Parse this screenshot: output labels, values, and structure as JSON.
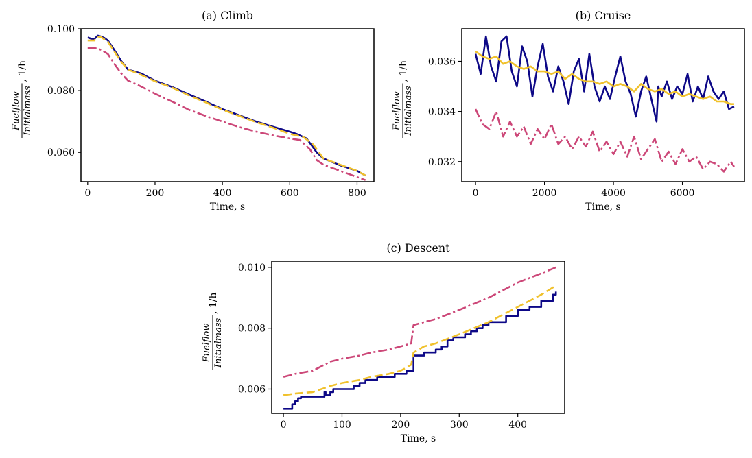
{
  "chart_data": [
    {
      "id": "climb",
      "type": "line",
      "title": "(a) Climb",
      "xlabel": "Time, s",
      "ylabel": {
        "numerator": "Fuelflow",
        "denominator": "Initialmass",
        "unit": ", 1/h"
      },
      "xlim": [
        -20,
        850
      ],
      "ylim": [
        0.0505,
        0.1
      ],
      "xticks": [
        0,
        200,
        400,
        600,
        800
      ],
      "yticks": [
        0.06,
        0.08,
        0.1
      ],
      "ytick_labels": [
        "0.060",
        "0.080",
        "0.100"
      ],
      "grid": false,
      "series": [
        {
          "color": "#0d0887",
          "style": "solid",
          "x": [
            0,
            10,
            20,
            30,
            40,
            50,
            60,
            80,
            100,
            120,
            140,
            160,
            180,
            200,
            250,
            300,
            350,
            400,
            450,
            500,
            550,
            600,
            620,
            650,
            680,
            700,
            750,
            800,
            825
          ],
          "y": [
            0.0972,
            0.0968,
            0.0967,
            0.0978,
            0.0975,
            0.097,
            0.0962,
            0.093,
            0.0895,
            0.0868,
            0.0862,
            0.0855,
            0.0843,
            0.0832,
            0.0812,
            0.0788,
            0.0765,
            0.074,
            0.072,
            0.07,
            0.0683,
            0.0667,
            0.066,
            0.0645,
            0.06,
            0.058,
            0.0558,
            0.054,
            0.0525
          ]
        },
        {
          "color": "#cc4778",
          "style": "dashdot",
          "x": [
            0,
            20,
            40,
            60,
            80,
            100,
            120,
            150,
            200,
            250,
            300,
            350,
            400,
            450,
            500,
            550,
            600,
            630,
            660,
            680,
            700,
            750,
            800,
            825
          ],
          "y": [
            0.0938,
            0.0938,
            0.0932,
            0.0918,
            0.0885,
            0.0855,
            0.0832,
            0.0818,
            0.079,
            0.0765,
            0.0738,
            0.0718,
            0.07,
            0.0682,
            0.0667,
            0.0655,
            0.0645,
            0.064,
            0.061,
            0.0575,
            0.056,
            0.054,
            0.052,
            0.051
          ]
        },
        {
          "color": "#f0c12c",
          "style": "dashed",
          "x": [
            0,
            20,
            30,
            40,
            60,
            80,
            100,
            120,
            150,
            200,
            250,
            300,
            350,
            400,
            450,
            500,
            550,
            600,
            640,
            670,
            700,
            750,
            800,
            825
          ],
          "y": [
            0.0962,
            0.0962,
            0.0975,
            0.0973,
            0.0958,
            0.0925,
            0.0892,
            0.0868,
            0.0855,
            0.083,
            0.081,
            0.0785,
            0.0762,
            0.0738,
            0.0718,
            0.0698,
            0.068,
            0.066,
            0.065,
            0.0625,
            0.058,
            0.056,
            0.054,
            0.0525
          ]
        }
      ]
    },
    {
      "id": "cruise",
      "type": "line",
      "title": "(b) Cruise",
      "xlabel": "Time, s",
      "ylabel": {
        "numerator": "Fuelflow",
        "denominator": "Initialmass",
        "unit": ", 1/h"
      },
      "xlim": [
        -400,
        7800
      ],
      "ylim": [
        0.0312,
        0.0373
      ],
      "xticks": [
        0,
        2000,
        4000,
        6000
      ],
      "yticks": [
        0.032,
        0.034,
        0.036
      ],
      "ytick_labels": [
        "0.032",
        "0.034",
        "0.036"
      ],
      "grid": false,
      "series": [
        {
          "color": "#0d0887",
          "style": "solid",
          "x": [
            0,
            150,
            300,
            450,
            600,
            750,
            900,
            1050,
            1200,
            1350,
            1500,
            1650,
            1800,
            1950,
            2100,
            2250,
            2400,
            2550,
            2700,
            2850,
            3000,
            3150,
            3300,
            3450,
            3600,
            3750,
            3900,
            4050,
            4200,
            4350,
            4500,
            4650,
            4800,
            4950,
            5100,
            5250,
            5300,
            5400,
            5550,
            5700,
            5850,
            6000,
            6150,
            6300,
            6450,
            6600,
            6750,
            6900,
            7050,
            7200,
            7350,
            7500
          ],
          "y": [
            0.0363,
            0.0355,
            0.037,
            0.0358,
            0.0352,
            0.0368,
            0.037,
            0.0356,
            0.035,
            0.0366,
            0.036,
            0.0346,
            0.0358,
            0.0367,
            0.0354,
            0.0348,
            0.0358,
            0.0352,
            0.0343,
            0.0356,
            0.0361,
            0.0348,
            0.0363,
            0.035,
            0.0344,
            0.035,
            0.0345,
            0.0354,
            0.0362,
            0.0352,
            0.0347,
            0.0338,
            0.0348,
            0.0354,
            0.0345,
            0.0336,
            0.035,
            0.0346,
            0.0352,
            0.0345,
            0.035,
            0.0347,
            0.0355,
            0.0344,
            0.035,
            0.0345,
            0.0354,
            0.0348,
            0.0345,
            0.0348,
            0.0341,
            0.0342
          ]
        },
        {
          "color": "#cc4778",
          "style": "dashdot",
          "x": [
            0,
            200,
            400,
            600,
            800,
            1000,
            1200,
            1400,
            1600,
            1800,
            2000,
            2200,
            2400,
            2600,
            2800,
            3000,
            3200,
            3400,
            3600,
            3800,
            4000,
            4200,
            4400,
            4600,
            4800,
            5000,
            5200,
            5400,
            5600,
            5800,
            6000,
            6200,
            6400,
            6600,
            6800,
            7000,
            7200,
            7400,
            7500
          ],
          "y": [
            0.0341,
            0.0335,
            0.0333,
            0.034,
            0.033,
            0.0336,
            0.033,
            0.0334,
            0.0327,
            0.0333,
            0.0329,
            0.0335,
            0.0327,
            0.033,
            0.0325,
            0.033,
            0.0326,
            0.0332,
            0.0324,
            0.0328,
            0.0323,
            0.0328,
            0.0322,
            0.033,
            0.0321,
            0.0325,
            0.0329,
            0.032,
            0.0324,
            0.0319,
            0.0325,
            0.032,
            0.0322,
            0.0317,
            0.032,
            0.0319,
            0.0316,
            0.032,
            0.0318
          ]
        },
        {
          "color": "#f0c12c",
          "style": "solid",
          "x": [
            0,
            200,
            400,
            600,
            800,
            1000,
            1200,
            1400,
            1600,
            1800,
            2000,
            2200,
            2400,
            2600,
            2800,
            3000,
            3200,
            3400,
            3600,
            3800,
            4000,
            4200,
            4400,
            4600,
            4800,
            5000,
            5200,
            5400,
            5600,
            5800,
            6000,
            6200,
            6400,
            6600,
            6800,
            7000,
            7200,
            7400,
            7500
          ],
          "y": [
            0.0364,
            0.0362,
            0.0361,
            0.0362,
            0.0359,
            0.036,
            0.0358,
            0.0357,
            0.0358,
            0.0356,
            0.0356,
            0.0355,
            0.0356,
            0.0353,
            0.0355,
            0.0353,
            0.0352,
            0.0352,
            0.0351,
            0.0352,
            0.035,
            0.0351,
            0.035,
            0.0348,
            0.0351,
            0.0349,
            0.0348,
            0.0349,
            0.0347,
            0.0348,
            0.0346,
            0.0347,
            0.0346,
            0.0345,
            0.0346,
            0.0344,
            0.0344,
            0.0343,
            0.0343
          ]
        }
      ]
    },
    {
      "id": "descent",
      "type": "line",
      "title": "(c) Descent",
      "xlabel": "Time, s",
      "ylabel": {
        "numerator": "Fuelflow",
        "denominator": "Initialmass",
        "unit": ", 1/h"
      },
      "xlim": [
        -20,
        480
      ],
      "ylim": [
        0.0052,
        0.0102
      ],
      "xticks": [
        0,
        100,
        200,
        300,
        400
      ],
      "yticks": [
        0.006,
        0.008,
        0.01
      ],
      "ytick_labels": [
        "0.006",
        "0.008",
        "0.010"
      ],
      "grid": false,
      "series": [
        {
          "color": "#0d0887",
          "style": "solid",
          "step": true,
          "x": [
            0,
            10,
            15,
            20,
            25,
            30,
            60,
            70,
            72,
            75,
            80,
            85,
            100,
            110,
            120,
            130,
            140,
            150,
            160,
            170,
            180,
            190,
            200,
            210,
            218,
            222,
            230,
            240,
            250,
            260,
            270,
            280,
            290,
            300,
            310,
            320,
            330,
            340,
            350,
            360,
            380,
            400,
            420,
            440,
            460,
            465
          ],
          "y": [
            0.00535,
            0.00535,
            0.0055,
            0.0056,
            0.0057,
            0.00575,
            0.00575,
            0.0059,
            0.0058,
            0.0058,
            0.0059,
            0.006,
            0.006,
            0.006,
            0.0061,
            0.0062,
            0.0063,
            0.0063,
            0.0064,
            0.0064,
            0.0064,
            0.0065,
            0.0065,
            0.0066,
            0.0066,
            0.0071,
            0.0071,
            0.0072,
            0.0072,
            0.0073,
            0.0074,
            0.0076,
            0.0077,
            0.0077,
            0.0078,
            0.0079,
            0.008,
            0.0081,
            0.0082,
            0.0082,
            0.0084,
            0.0086,
            0.0087,
            0.0089,
            0.0091,
            0.0092
          ]
        },
        {
          "color": "#cc4778",
          "style": "dashdot",
          "x": [
            0,
            20,
            50,
            80,
            100,
            130,
            150,
            180,
            200,
            218,
            222,
            240,
            260,
            300,
            350,
            400,
            440,
            465
          ],
          "y": [
            0.0064,
            0.0065,
            0.0066,
            0.0069,
            0.007,
            0.0071,
            0.0072,
            0.0073,
            0.0074,
            0.0075,
            0.0081,
            0.0082,
            0.0083,
            0.0086,
            0.009,
            0.0095,
            0.0098,
            0.01
          ]
        },
        {
          "color": "#f0c12c",
          "style": "dashed",
          "x": [
            0,
            20,
            50,
            80,
            100,
            130,
            150,
            180,
            200,
            218,
            222,
            240,
            260,
            300,
            350,
            400,
            440,
            465
          ],
          "y": [
            0.0058,
            0.00585,
            0.0059,
            0.0061,
            0.0062,
            0.0063,
            0.0064,
            0.0065,
            0.0066,
            0.0068,
            0.0072,
            0.0074,
            0.0075,
            0.0078,
            0.0082,
            0.0087,
            0.0091,
            0.0094
          ]
        }
      ]
    }
  ]
}
